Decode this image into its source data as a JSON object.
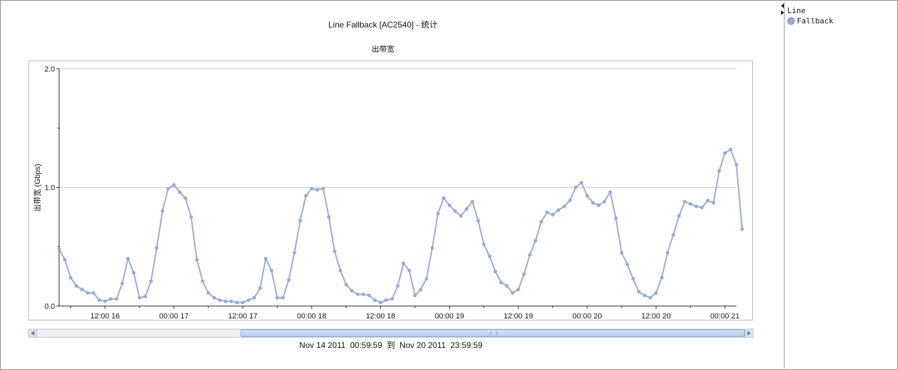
{
  "window": {
    "legend_title": "Line",
    "legend_items": [
      {
        "label": "Fallback",
        "color": "#94acd6"
      }
    ]
  },
  "scrollbar": {
    "range_label": "Nov 14 2011  00:59:59  到  Nov 20 2011  23:59:59"
  },
  "chart_data": {
    "type": "line",
    "title": "Line Fallback [AC2540] - 统计",
    "subtitle": "出带宽",
    "ylabel": "出带宽 (Gbps)",
    "xlabel": "",
    "ylim": [
      0,
      2.0
    ],
    "y_ticks": [
      "0.0",
      "1.0",
      "2.0"
    ],
    "x_ticks": [
      "12:00 16",
      "00:00 17",
      "12:00 17",
      "00:00 18",
      "12:00 18",
      "00:00 19",
      "12:00 19",
      "00:00 20",
      "12:00 20",
      "00:00 21"
    ],
    "x_range_hours": [
      0,
      118
    ],
    "x_step_hours": 1,
    "x_tick_positions_hours": [
      8,
      20,
      32,
      44,
      56,
      68,
      80,
      92,
      104,
      116
    ],
    "grid": "horizontal",
    "legend": "right-panel",
    "series": [
      {
        "name": "Fallback",
        "color": "#94acd6",
        "values": [
          0.48,
          0.39,
          0.24,
          0.17,
          0.14,
          0.11,
          0.11,
          0.05,
          0.04,
          0.06,
          0.06,
          0.19,
          0.4,
          0.28,
          0.07,
          0.08,
          0.21,
          0.49,
          0.8,
          0.99,
          1.02,
          0.96,
          0.91,
          0.75,
          0.39,
          0.21,
          0.11,
          0.07,
          0.05,
          0.04,
          0.04,
          0.03,
          0.03,
          0.05,
          0.07,
          0.15,
          0.4,
          0.3,
          0.07,
          0.07,
          0.22,
          0.45,
          0.72,
          0.93,
          0.99,
          0.98,
          0.99,
          0.75,
          0.46,
          0.3,
          0.18,
          0.13,
          0.1,
          0.1,
          0.09,
          0.05,
          0.03,
          0.05,
          0.06,
          0.17,
          0.36,
          0.3,
          0.09,
          0.14,
          0.23,
          0.49,
          0.78,
          0.91,
          0.85,
          0.8,
          0.76,
          0.82,
          0.88,
          0.72,
          0.52,
          0.42,
          0.29,
          0.2,
          0.17,
          0.11,
          0.14,
          0.27,
          0.43,
          0.55,
          0.71,
          0.79,
          0.77,
          0.81,
          0.84,
          0.89,
          1.0,
          1.04,
          0.93,
          0.87,
          0.85,
          0.88,
          0.96,
          0.74,
          0.45,
          0.35,
          0.23,
          0.12,
          0.09,
          0.07,
          0.11,
          0.24,
          0.45,
          0.6,
          0.76,
          0.88,
          0.86,
          0.84,
          0.83,
          0.89,
          0.87,
          1.14,
          1.29,
          1.32,
          1.19,
          0.65
        ]
      }
    ]
  }
}
